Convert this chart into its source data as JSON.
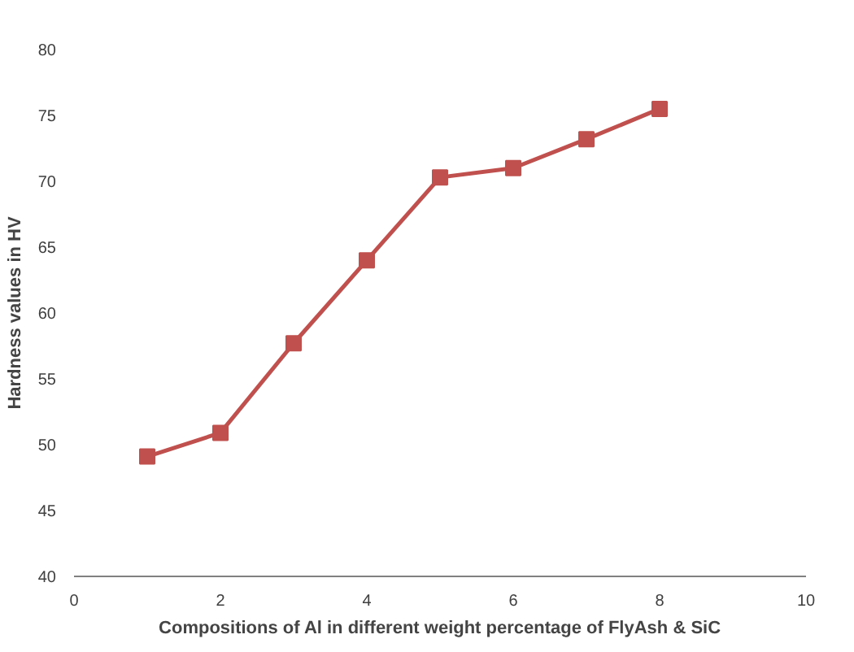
{
  "chart_data": {
    "type": "line",
    "xlabel": "Compositions of Al in different weight percentage of FlyAsh & SiC",
    "ylabel": "Hardness values in HV",
    "x": [
      1,
      2,
      3,
      4,
      5,
      6,
      7,
      8
    ],
    "series": [
      {
        "color": "#c0504d",
        "values": [
          49.1,
          50.9,
          57.7,
          64.0,
          70.3,
          71.0,
          73.2,
          75.5
        ]
      }
    ],
    "xlim": [
      0,
      10
    ],
    "xticks": [
      0,
      2,
      4,
      6,
      8,
      10
    ],
    "ylim": [
      40,
      80
    ],
    "yticks": [
      40,
      45,
      50,
      55,
      60,
      65,
      70,
      75,
      80
    ],
    "marker": "square",
    "line_style": "solid"
  }
}
